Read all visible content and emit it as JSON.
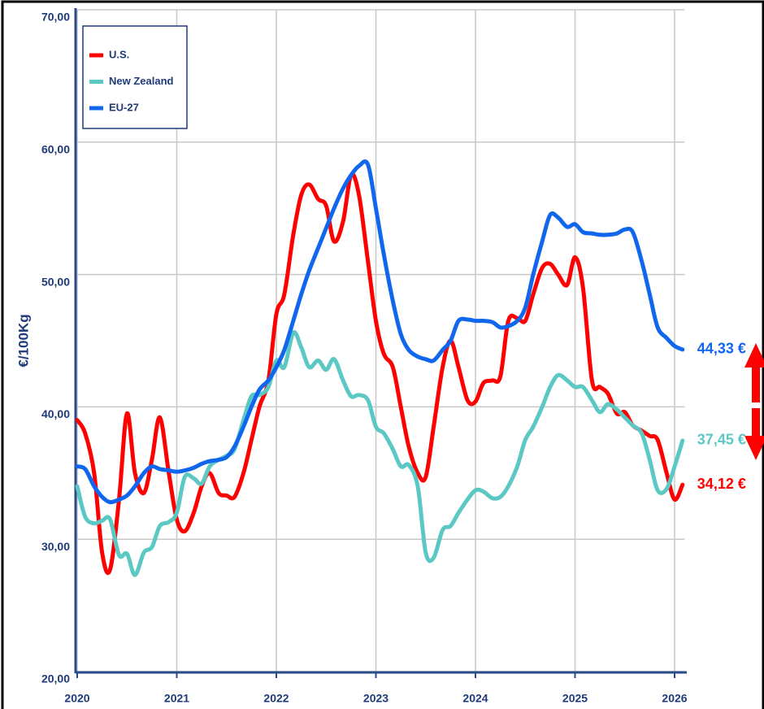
{
  "chart_data": {
    "type": "line",
    "y_label": "€/100Kg",
    "xlim": [
      2020,
      2026.1
    ],
    "ylim": [
      20,
      70
    ],
    "xticks": [
      2020,
      2021,
      2022,
      2023,
      2024,
      2025,
      2026
    ],
    "yticks": [
      {
        "value": 20,
        "label": "20,00"
      },
      {
        "value": 30,
        "label": "30,00"
      },
      {
        "value": 40,
        "label": "40,00"
      },
      {
        "value": 50,
        "label": "50,00"
      },
      {
        "value": 60,
        "label": "60,00"
      },
      {
        "value": 70,
        "label": "70,00"
      }
    ],
    "grid": true,
    "legend": "upper left",
    "x": [
      2020.0,
      2020.08,
      2020.17,
      2020.25,
      2020.33,
      2020.42,
      2020.5,
      2020.58,
      2020.67,
      2020.75,
      2020.83,
      2020.92,
      2021.0,
      2021.08,
      2021.17,
      2021.25,
      2021.33,
      2021.42,
      2021.5,
      2021.58,
      2021.67,
      2021.75,
      2021.83,
      2021.92,
      2022.0,
      2022.08,
      2022.17,
      2022.25,
      2022.33,
      2022.42,
      2022.5,
      2022.58,
      2022.67,
      2022.75,
      2022.83,
      2022.92,
      2023.0,
      2023.08,
      2023.17,
      2023.25,
      2023.33,
      2023.42,
      2023.5,
      2023.58,
      2023.67,
      2023.75,
      2023.83,
      2023.92,
      2024.0,
      2024.08,
      2024.17,
      2024.25,
      2024.33,
      2024.42,
      2024.5,
      2024.58,
      2024.67,
      2024.75,
      2024.83,
      2024.92,
      2025.0,
      2025.08,
      2025.17,
      2025.25,
      2025.33,
      2025.42,
      2025.5,
      2025.58,
      2025.67,
      2025.75,
      2025.83,
      2025.92,
      2026.0,
      2026.08
    ],
    "series": [
      {
        "name": "U.S.",
        "color": "#ff0000",
        "end_label": "34,12 €",
        "values": [
          39,
          38,
          35,
          29,
          27.7,
          33,
          39.5,
          35,
          33.5,
          36,
          39.2,
          35,
          31.5,
          30.6,
          32,
          34,
          35,
          33.5,
          33.3,
          33.2,
          35,
          37.5,
          40,
          42,
          47,
          48.5,
          53,
          56,
          56.8,
          55.7,
          55.2,
          52.5,
          54,
          57.5,
          56,
          51,
          46.5,
          44,
          43,
          40,
          37,
          35,
          34.7,
          38.5,
          43,
          45,
          43,
          40.5,
          40.4,
          41.8,
          42,
          42.3,
          46.5,
          46.7,
          46.5,
          48.5,
          50.5,
          50.8,
          50,
          49.2,
          51.3,
          49,
          42,
          41.5,
          41,
          39.5,
          39.6,
          38.6,
          38.2,
          37.8,
          37.5,
          35,
          33,
          34.12
        ]
      },
      {
        "name": "New Zealand",
        "color": "#5cc8c4",
        "end_label": "37,45 €",
        "values": [
          34,
          31.7,
          31.2,
          31.4,
          31.5,
          28.8,
          28.9,
          27.3,
          29,
          29.4,
          31,
          31.3,
          32,
          34.7,
          34.6,
          34.2,
          35.5,
          36,
          36.3,
          36.8,
          39,
          40.8,
          40.9,
          41.5,
          43.5,
          43,
          45.6,
          44.5,
          43,
          43.5,
          42.8,
          43.6,
          42,
          40.8,
          40.9,
          40.5,
          38.5,
          38,
          36.8,
          35.5,
          35.6,
          34,
          29,
          28.6,
          30.7,
          31,
          32,
          33,
          33.7,
          33.6,
          33.1,
          33.2,
          34,
          35.5,
          37.5,
          38.5,
          40,
          41.5,
          42.4,
          42,
          41.5,
          41.5,
          40.5,
          39.6,
          40.2,
          39.8,
          39.2,
          38.6,
          38,
          36,
          33.7,
          33.8,
          35.5,
          37.45
        ]
      },
      {
        "name": "EU-27",
        "color": "#1166ee",
        "end_label": "44,33 €",
        "values": [
          35.5,
          35.3,
          34,
          33.2,
          32.8,
          33,
          33.3,
          34,
          35,
          35.5,
          35.3,
          35.2,
          35.1,
          35.2,
          35.4,
          35.7,
          35.9,
          36,
          36.2,
          37,
          38.5,
          40,
          41.3,
          42,
          43,
          44.3,
          46.5,
          48.5,
          50.3,
          52,
          53.5,
          55,
          56.5,
          57.5,
          58.2,
          58.3,
          55,
          51.5,
          48,
          45.5,
          44.3,
          43.8,
          43.6,
          43.5,
          44.3,
          45,
          46.5,
          46.6,
          46.5,
          46.5,
          46.4,
          46,
          46.1,
          46.5,
          47.5,
          50,
          52.5,
          54.5,
          54.3,
          53.6,
          53.8,
          53.2,
          53.1,
          53,
          53,
          53.1,
          53.4,
          53.2,
          51,
          48.5,
          46,
          45.2,
          44.6,
          44.33
        ]
      }
    ]
  }
}
